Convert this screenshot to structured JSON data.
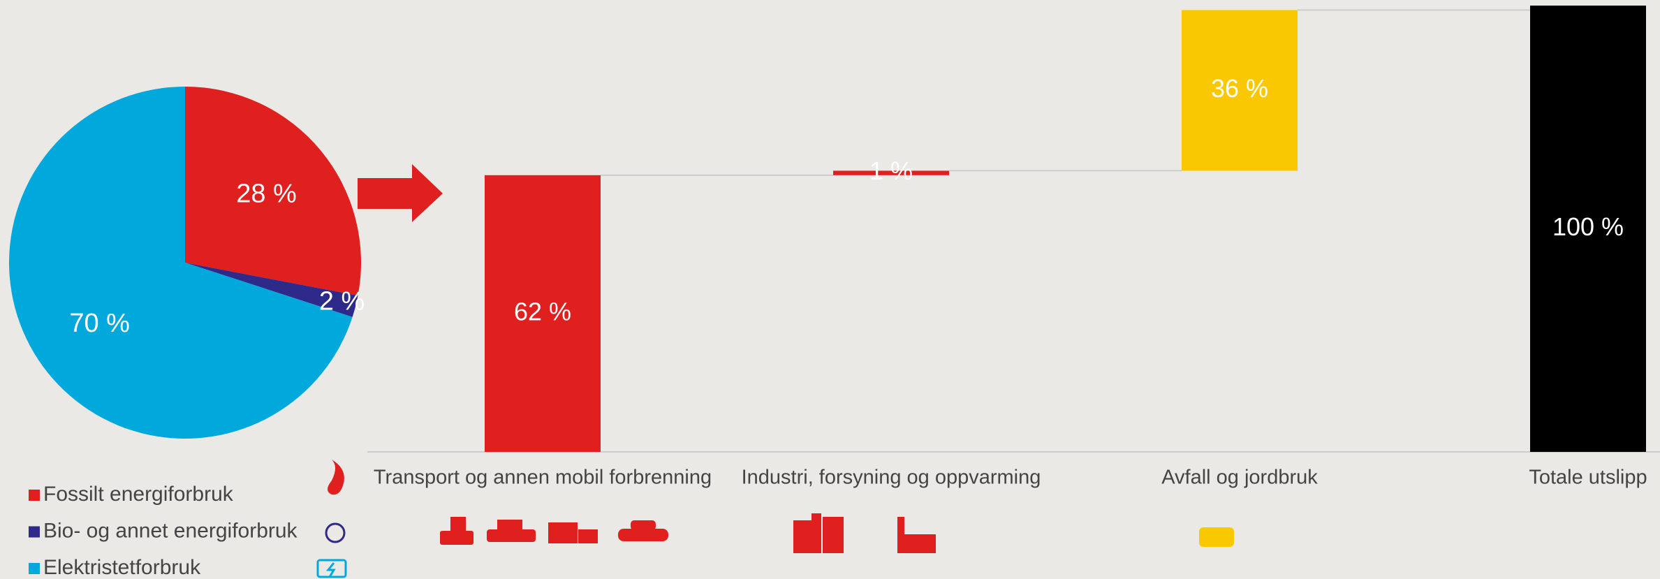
{
  "chart_data": [
    {
      "type": "pie",
      "categories": [
        "Fossilt energiforbruk",
        "Bio- og annet energiforbruk",
        "Elektristetforbruk"
      ],
      "values": [
        28,
        2,
        70
      ],
      "value_labels": [
        "28 %",
        "2 %",
        "70 %"
      ],
      "colors": [
        "#e01f1f",
        "#2e2a8a",
        "#00a8dc"
      ]
    },
    {
      "type": "waterfall",
      "categories": [
        "Transport og annen mobil forbrenning",
        "Industri, forsyning og oppvarming",
        "Avfall og jordbruk",
        "Totale utslipp"
      ],
      "values": [
        62,
        1,
        36,
        100
      ],
      "value_labels": [
        "62 %",
        "1 %",
        "36 %",
        "100 %"
      ],
      "colors": [
        "#e01f1f",
        "#e01f1f",
        "#f9c800",
        "#000000"
      ],
      "total": [
        false,
        false,
        false,
        true
      ]
    }
  ]
}
